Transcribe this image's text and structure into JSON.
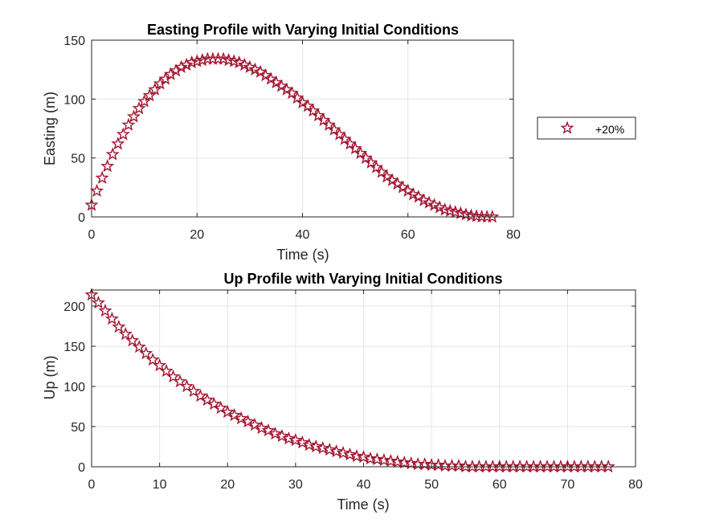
{
  "colors": {
    "marker_stroke": "#A2142F",
    "marker_inner": "#ffffff",
    "grid": "#e6e6e6",
    "axis": "#262626"
  },
  "chart_data": [
    {
      "type": "scatter",
      "title": "Easting Profile with Varying Initial Conditions",
      "xlabel": "Time (s)",
      "ylabel": "Easting (m)",
      "xlim": [
        0,
        80
      ],
      "ylim": [
        0,
        150
      ],
      "xticks": [
        "0",
        "20",
        "40",
        "60",
        "80"
      ],
      "yticks": [
        "0",
        "50",
        "100",
        "150"
      ],
      "grid": true,
      "legend": {
        "position": "outside-right",
        "entries": [
          "+20%"
        ]
      },
      "marker": "pentagram",
      "series": [
        {
          "name": "+20%",
          "x": [
            0,
            1,
            2,
            3,
            4,
            5,
            6,
            7,
            8,
            9,
            10,
            11,
            12,
            13,
            14,
            15,
            16,
            17,
            18,
            19,
            20,
            21,
            22,
            23,
            24,
            25,
            26,
            27,
            28,
            29,
            30,
            31,
            32,
            33,
            34,
            35,
            36,
            37,
            38,
            39,
            40,
            41,
            42,
            43,
            44,
            45,
            46,
            47,
            48,
            49,
            50,
            51,
            52,
            53,
            54,
            55,
            56,
            57,
            58,
            59,
            60,
            61,
            62,
            63,
            64,
            65,
            66,
            67,
            68,
            69,
            70,
            71,
            72,
            73,
            74,
            75,
            76
          ],
          "y": [
            10,
            22,
            33,
            43,
            53,
            62,
            70,
            78,
            85,
            92,
            98,
            103,
            108,
            113,
            117,
            121,
            124,
            127,
            129,
            131,
            132,
            133,
            134,
            134,
            134,
            134,
            133,
            132,
            131,
            129,
            127,
            125,
            123,
            120,
            117,
            114,
            111,
            108,
            105,
            101,
            97,
            94,
            90,
            86,
            82,
            78,
            74,
            70,
            66,
            62,
            58,
            54,
            50,
            46,
            42,
            38,
            34,
            31,
            28,
            25,
            22,
            19,
            17,
            14,
            12,
            10,
            8,
            6,
            5,
            4,
            3,
            2,
            1,
            0.5,
            0.2,
            0,
            0
          ]
        }
      ]
    },
    {
      "type": "scatter",
      "title": "Up Profile with Varying Initial Conditions",
      "xlabel": "Time (s)",
      "ylabel": "Up (m)",
      "xlim": [
        0,
        80
      ],
      "ylim": [
        0,
        220
      ],
      "xticks": [
        "0",
        "10",
        "20",
        "30",
        "40",
        "50",
        "60",
        "70",
        "80"
      ],
      "yticks": [
        "0",
        "50",
        "100",
        "150",
        "200"
      ],
      "grid": true,
      "marker": "pentagram",
      "series": [
        {
          "x": [
            0,
            1,
            2,
            3,
            4,
            5,
            6,
            7,
            8,
            9,
            10,
            11,
            12,
            13,
            14,
            15,
            16,
            17,
            18,
            19,
            20,
            21,
            22,
            23,
            24,
            25,
            26,
            27,
            28,
            29,
            30,
            31,
            32,
            33,
            34,
            35,
            36,
            37,
            38,
            39,
            40,
            41,
            42,
            43,
            44,
            45,
            46,
            47,
            48,
            49,
            50,
            51,
            52,
            53,
            54,
            55,
            56,
            57,
            58,
            59,
            60,
            61,
            62,
            63,
            64,
            65,
            66,
            67,
            68,
            69,
            70,
            71,
            72,
            73,
            74,
            75,
            76
          ],
          "y": [
            214,
            204,
            194,
            184,
            174,
            165,
            157,
            149,
            141,
            133,
            126,
            119,
            112,
            106,
            100,
            94,
            88,
            83,
            78,
            73,
            68,
            64,
            60,
            56,
            52,
            48,
            45,
            41,
            38,
            35,
            33,
            30,
            27,
            25,
            23,
            21,
            19,
            17,
            15,
            13,
            12,
            10,
            9,
            8,
            7,
            6,
            5,
            4,
            3,
            3,
            2,
            2,
            1,
            1,
            1,
            0,
            0,
            0,
            0,
            0,
            0,
            0,
            0,
            0,
            0,
            0,
            0,
            0,
            0,
            0,
            0,
            0,
            0,
            0,
            0,
            0,
            0
          ]
        }
      ]
    }
  ]
}
